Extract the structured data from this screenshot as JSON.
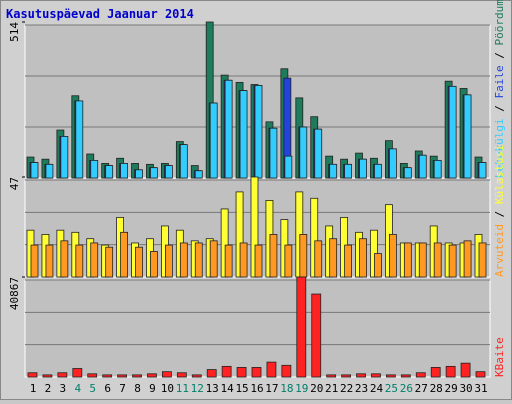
{
  "chart_data": {
    "type": "bar",
    "title": "Kasutuspäevad Jaanuar 2014",
    "categories": [
      "1",
      "2",
      "3",
      "4",
      "5",
      "6",
      "7",
      "8",
      "9",
      "10",
      "11",
      "12",
      "13",
      "14",
      "15",
      "16",
      "17",
      "18",
      "19",
      "20",
      "21",
      "22",
      "23",
      "24",
      "25",
      "26",
      "27",
      "28",
      "29",
      "30",
      "31"
    ],
    "category_colors": [
      "#000000",
      "#000000",
      "#000000",
      "#00806a",
      "#00806a",
      "#000000",
      "#000000",
      "#000000",
      "#000000",
      "#000000",
      "#00806a",
      "#00806a",
      "#000000",
      "#000000",
      "#000000",
      "#000000",
      "#000000",
      "#00806a",
      "#00806a",
      "#000000",
      "#000000",
      "#000000",
      "#000000",
      "#000000",
      "#00806a",
      "#00806a",
      "#000000",
      "#000000",
      "#000000",
      "#000000",
      "#000000"
    ],
    "legend_separator": " / ",
    "panels": [
      {
        "ylim": [
          0,
          514
        ],
        "yticks": [
          514
        ],
        "series": [
          {
            "name": "Pöördumisi",
            "color": "#1e7b5b",
            "values": [
              69,
              62,
              158,
              271,
              79,
              48,
              65,
              48,
              45,
              48,
              120,
              41,
              514,
              339,
              315,
              308,
              185,
              360,
              264,
              202,
              72,
              62,
              82,
              65,
              123,
              48,
              89,
              72,
              319,
              295,
              69
            ]
          },
          {
            "name": "Faile",
            "color": "#2244dd",
            "values": [
              51,
              45,
              137,
              254,
              58,
              41,
              48,
              27,
              34,
              41,
              110,
              24,
              247,
              322,
              288,
              305,
              164,
              329,
              168,
              161,
              45,
              45,
              62,
              45,
              96,
              34,
              75,
              58,
              302,
              274,
              51
            ]
          },
          {
            "name": "Lehekülgi",
            "color": "#33ccff",
            "values": [
              51,
              45,
              137,
              254,
              58,
              41,
              48,
              27,
              34,
              41,
              110,
              24,
              247,
              322,
              288,
              305,
              164,
              72,
              168,
              161,
              45,
              45,
              62,
              45,
              96,
              34,
              75,
              58,
              302,
              274,
              51
            ]
          }
        ]
      },
      {
        "ylim": [
          0,
          47
        ],
        "yticks": [
          47
        ],
        "series": [
          {
            "name": "Külastusi",
            "color": "#ffff33",
            "values": [
              22,
              20,
              22,
              21,
              18,
              15,
              28,
              16,
              18,
              24,
              22,
              17,
              18,
              32,
              40,
              47,
              36,
              27,
              40,
              37,
              24,
              28,
              21,
              22,
              34,
              16,
              16,
              24,
              16,
              16,
              20
            ]
          },
          {
            "name": "Arvuteid",
            "color": "#ff9922",
            "values": [
              15,
              15,
              17,
              15,
              16,
              14,
              21,
              14,
              12,
              15,
              16,
              16,
              17,
              15,
              16,
              15,
              20,
              15,
              20,
              17,
              18,
              15,
              18,
              11,
              20,
              16,
              16,
              16,
              15,
              17,
              16
            ]
          }
        ]
      },
      {
        "ylim": [
          0,
          40867
        ],
        "yticks": [
          40867
        ],
        "series": [
          {
            "name": "KBaite",
            "color": "#ff2222",
            "values": [
              1739,
              870,
              1739,
              3478,
              1304,
              870,
              870,
              870,
              1304,
              2174,
              1739,
              870,
              3043,
              4348,
              3913,
              3913,
              6087,
              4782,
              40867,
              33911,
              870,
              870,
              1304,
              1304,
              870,
              870,
              1739,
              3913,
              4348,
              5652,
              2174
            ]
          }
        ]
      }
    ]
  }
}
